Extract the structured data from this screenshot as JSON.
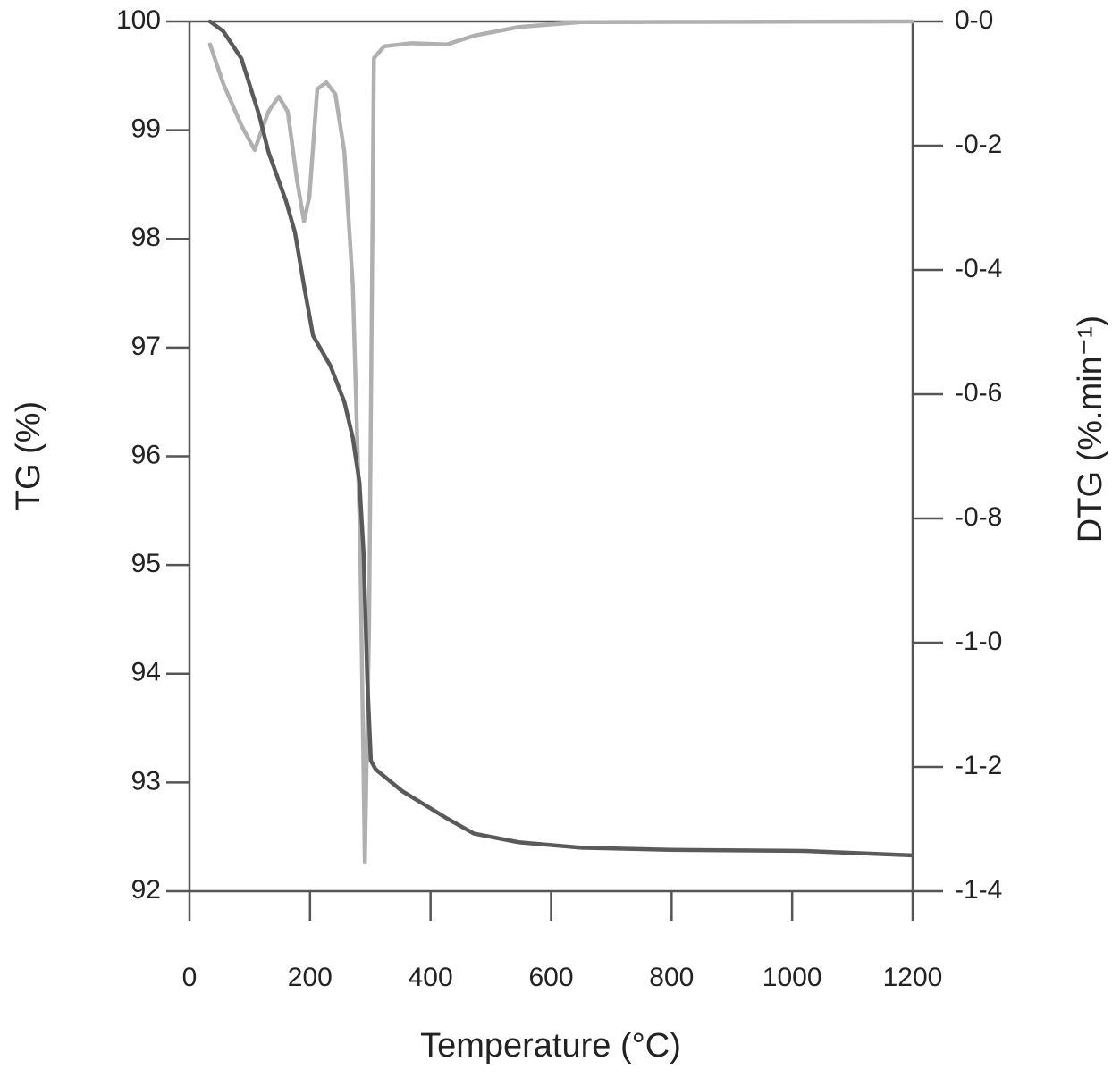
{
  "chart_data": {
    "type": "line",
    "x_label": "Temperature (°C)",
    "y_label": "TG (%)",
    "y2_label": "DTG (%.min⁻¹)",
    "xlim": [
      0,
      1200
    ],
    "xticks": [
      0,
      200,
      400,
      600,
      800,
      1000,
      1200
    ],
    "ylim": [
      92,
      100
    ],
    "yticks": [
      92,
      93,
      94,
      95,
      96,
      97,
      98,
      99,
      100
    ],
    "y2lim": [
      -1.4,
      0
    ],
    "y2ticks": [
      {
        "value": -1.4,
        "label": "-1-4"
      },
      {
        "value": -1.2,
        "label": "-1-2"
      },
      {
        "value": -1.0,
        "label": "-1-0"
      },
      {
        "value": -0.8,
        "label": "-0-8"
      },
      {
        "value": -0.6,
        "label": "-0-6"
      },
      {
        "value": -0.4,
        "label": "-0-4"
      },
      {
        "value": -0.2,
        "label": "-0-2"
      },
      {
        "value": 0,
        "label": "0-0"
      }
    ],
    "series": [
      {
        "name": "TG",
        "color": "#5a5a5a",
        "x": [
          34,
          56,
          86,
          116,
          131,
          160,
          175,
          190,
          205,
          234,
          257,
          271,
          282,
          289,
          295,
          301,
          309,
          353,
          427,
          472,
          546,
          650,
          798,
          1021,
          1199
        ],
        "values": [
          100,
          99.91,
          99.66,
          99.13,
          98.8,
          98.35,
          98.06,
          97.57,
          97.11,
          96.83,
          96.5,
          96.17,
          95.76,
          95.1,
          93.95,
          93.2,
          93.12,
          92.92,
          92.67,
          92.53,
          92.45,
          92.4,
          92.38,
          92.37,
          92.33
        ]
      },
      {
        "name": "DTG",
        "color": "#b0b0b0",
        "axis": "y2",
        "x": [
          34,
          56,
          86,
          108,
          131,
          148,
          163,
          178,
          190,
          199,
          212,
          227,
          242,
          257,
          271,
          283,
          291,
          298,
          306,
          323,
          368,
          427,
          472,
          546,
          650,
          1199
        ],
        "values": [
          -0.037,
          -0.1,
          -0.167,
          -0.207,
          -0.145,
          -0.121,
          -0.145,
          -0.253,
          -0.322,
          -0.282,
          -0.109,
          -0.098,
          -0.117,
          -0.21,
          -0.426,
          -0.829,
          -1.354,
          -0.973,
          -0.059,
          -0.04,
          -0.035,
          -0.037,
          -0.023,
          -0.009,
          -0.001,
          0
        ]
      }
    ]
  }
}
